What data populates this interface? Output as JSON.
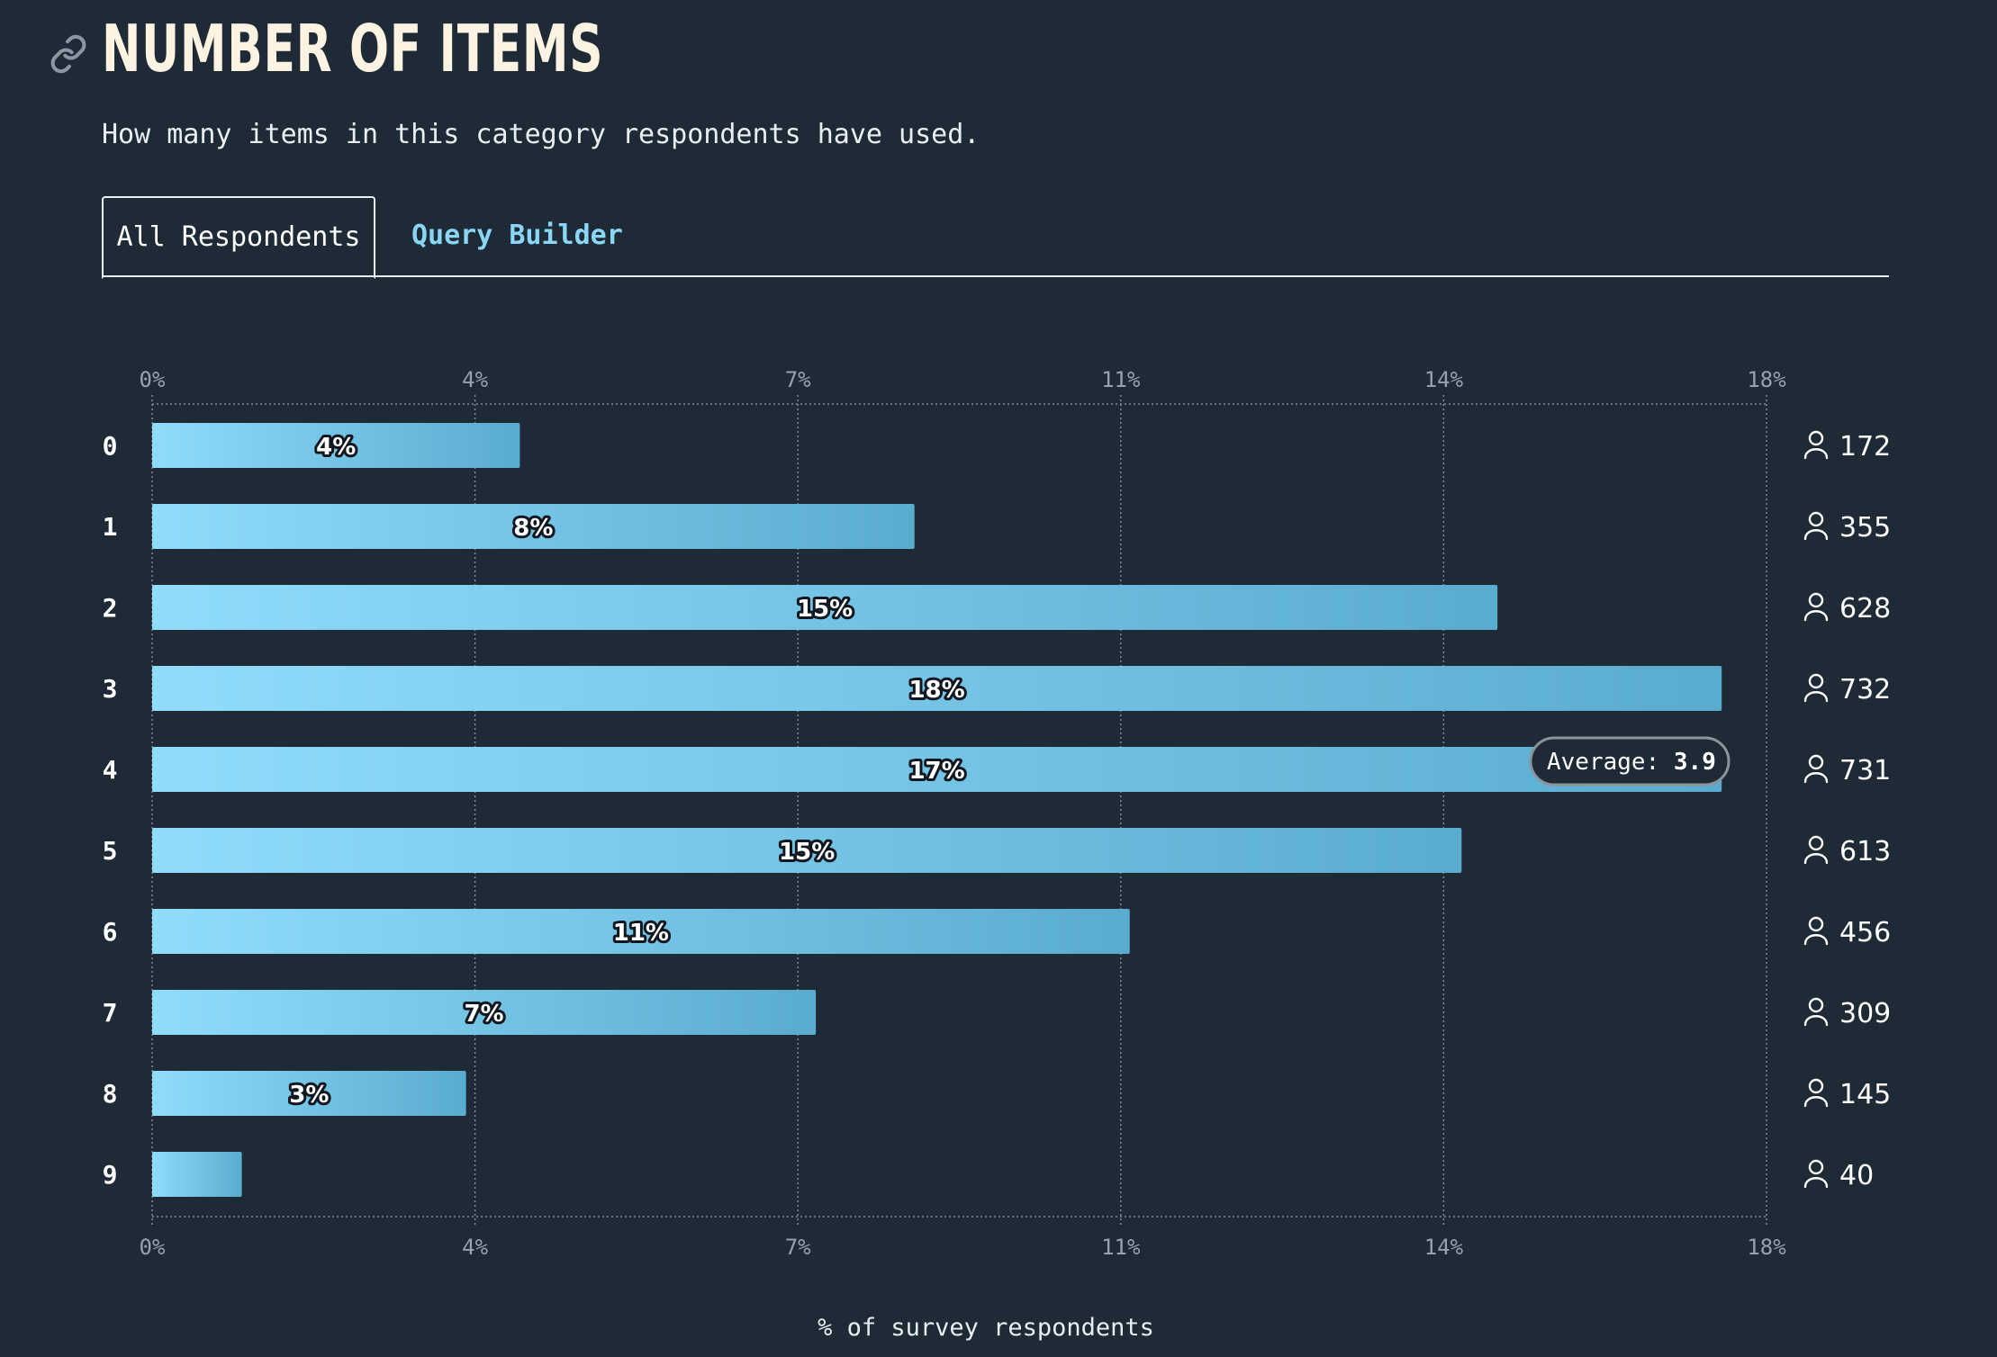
{
  "header": {
    "title": "NUMBER OF ITEMS",
    "description": "How many items in this category respondents have used."
  },
  "tabs": [
    {
      "label": "All Respondents",
      "active": true
    },
    {
      "label": "Query Builder",
      "active": false
    }
  ],
  "icons": {
    "title_link": "link-icon",
    "respondent": "user-icon"
  },
  "colors": {
    "background": "#1e2a35",
    "bar_start": "#8fdcfb",
    "bar_end": "#5aaccf",
    "accent": "#8ad6f6",
    "grid": "#7f8b95",
    "average_line": "#6f787f"
  },
  "chart_data": {
    "type": "bar",
    "orientation": "horizontal",
    "categories": [
      "0",
      "1",
      "2",
      "3",
      "4",
      "5",
      "6",
      "7",
      "8",
      "9"
    ],
    "values": [
      4.1,
      8.5,
      15.0,
      17.5,
      17.5,
      14.6,
      10.9,
      7.4,
      3.5,
      1.0
    ],
    "value_labels": [
      "4%",
      "8%",
      "15%",
      "18%",
      "17%",
      "15%",
      "11%",
      "7%",
      "3%",
      ""
    ],
    "counts": [
      "172",
      "355",
      "628",
      "732",
      "731",
      "613",
      "456",
      "309",
      "145",
      "40"
    ],
    "xticks": [
      0,
      3.6,
      7.2,
      10.8,
      14.4,
      18
    ],
    "xtick_labels": [
      "0%",
      "4%",
      "7%",
      "11%",
      "14%",
      "18%"
    ],
    "xlim": [
      0,
      18
    ],
    "xlabel": "% of survey respondents",
    "grid": true,
    "average": {
      "label": "Average:",
      "value": "3.9",
      "category_position": 3.9
    }
  }
}
